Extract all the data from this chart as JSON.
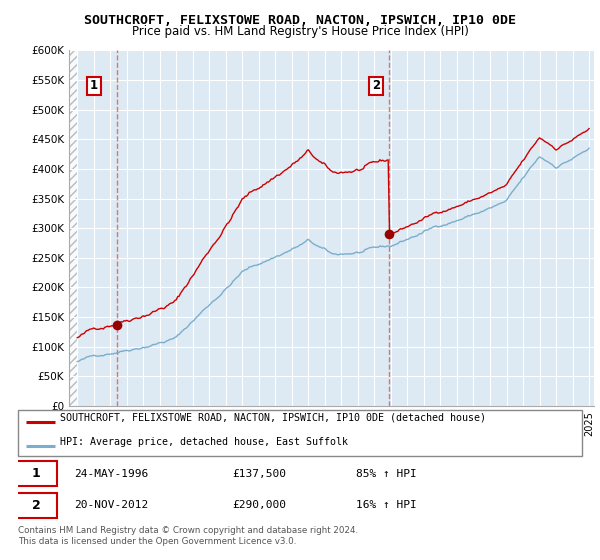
{
  "title": "SOUTHCROFT, FELIXSTOWE ROAD, NACTON, IPSWICH, IP10 0DE",
  "subtitle": "Price paid vs. HM Land Registry's House Price Index (HPI)",
  "ylabel_ticks": [
    "£0",
    "£50K",
    "£100K",
    "£150K",
    "£200K",
    "£250K",
    "£300K",
    "£350K",
    "£400K",
    "£450K",
    "£500K",
    "£550K",
    "£600K"
  ],
  "ytick_values": [
    0,
    50000,
    100000,
    150000,
    200000,
    250000,
    300000,
    350000,
    400000,
    450000,
    500000,
    550000,
    600000
  ],
  "ylim": [
    0,
    600000
  ],
  "sale1_year": 1996.38,
  "sale1_price": 137500,
  "sale1_label": "1",
  "sale2_year": 2012.88,
  "sale2_price": 290000,
  "sale2_label": "2",
  "line_color_red": "#cc0000",
  "line_color_blue": "#7aaecc",
  "vline_color": "#dd6666",
  "dot_color": "#990000",
  "legend_line1": "SOUTHCROFT, FELIXSTOWE ROAD, NACTON, IPSWICH, IP10 0DE (detached house)",
  "legend_line2": "HPI: Average price, detached house, East Suffolk",
  "table_row1": [
    "1",
    "24-MAY-1996",
    "£137,500",
    "85% ↑ HPI"
  ],
  "table_row2": [
    "2",
    "20-NOV-2012",
    "£290,000",
    "16% ↑ HPI"
  ],
  "footnote": "Contains HM Land Registry data © Crown copyright and database right 2024.\nThis data is licensed under the Open Government Licence v3.0."
}
